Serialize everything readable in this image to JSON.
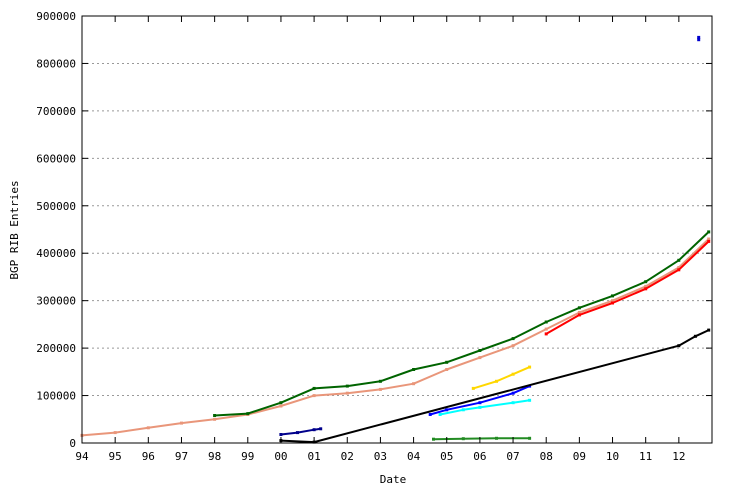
{
  "chart_data": {
    "type": "scatter",
    "xlabel": "Date",
    "ylabel": "BGP RIB Entries",
    "x_ticks": [
      "94",
      "95",
      "96",
      "97",
      "98",
      "99",
      "00",
      "01",
      "02",
      "03",
      "04",
      "05",
      "06",
      "07",
      "08",
      "09",
      "10",
      "11",
      "12"
    ],
    "y_ticks": [
      "0",
      "100000",
      "200000",
      "300000",
      "400000",
      "500000",
      "600000",
      "700000",
      "800000",
      "900000"
    ],
    "xlim": [
      1994.0,
      2013.0
    ],
    "ylim": [
      0,
      900000
    ],
    "grid": "horizontal dotted",
    "legend": "none",
    "series": [
      {
        "color": "#e9967a",
        "points": [
          [
            1994.0,
            16000
          ],
          [
            1995.0,
            22000
          ],
          [
            1996.0,
            32000
          ],
          [
            1997.0,
            42000
          ],
          [
            1998.0,
            50000
          ],
          [
            1999.0,
            60000
          ],
          [
            2000.0,
            78000
          ],
          [
            2001.0,
            100000
          ],
          [
            2002.0,
            105000
          ],
          [
            2003.0,
            113000
          ],
          [
            2004.0,
            125000
          ],
          [
            2005.0,
            155000
          ],
          [
            2006.0,
            180000
          ],
          [
            2007.0,
            205000
          ],
          [
            2008.0,
            240000
          ],
          [
            2009.0,
            275000
          ],
          [
            2010.0,
            300000
          ],
          [
            2011.0,
            330000
          ],
          [
            2012.0,
            370000
          ],
          [
            2012.9,
            430000
          ]
        ]
      },
      {
        "color": "#006400",
        "points": [
          [
            1998.0,
            58000
          ],
          [
            1999.0,
            62000
          ],
          [
            2000.0,
            85000
          ],
          [
            2001.0,
            115000
          ],
          [
            2002.0,
            120000
          ],
          [
            2003.0,
            130000
          ],
          [
            2004.0,
            155000
          ],
          [
            2005.0,
            170000
          ],
          [
            2006.0,
            195000
          ],
          [
            2007.0,
            220000
          ],
          [
            2008.0,
            255000
          ],
          [
            2009.0,
            285000
          ],
          [
            2010.0,
            310000
          ],
          [
            2011.0,
            340000
          ],
          [
            2012.0,
            385000
          ],
          [
            2012.9,
            445000
          ]
        ]
      },
      {
        "color": "#00008b",
        "points": [
          [
            2000.0,
            18000
          ],
          [
            2000.5,
            22000
          ],
          [
            2001.0,
            28000
          ],
          [
            2001.2,
            30000
          ]
        ]
      },
      {
        "color": "#0000ff",
        "points": [
          [
            2004.5,
            60000
          ],
          [
            2005.0,
            70000
          ],
          [
            2006.0,
            85000
          ],
          [
            2007.0,
            105000
          ],
          [
            2007.5,
            120000
          ]
        ]
      },
      {
        "color": "#ffd700",
        "points": [
          [
            2005.8,
            115000
          ],
          [
            2006.5,
            130000
          ],
          [
            2007.0,
            145000
          ],
          [
            2007.5,
            160000
          ]
        ]
      },
      {
        "color": "#00ffff",
        "points": [
          [
            2004.8,
            60000
          ],
          [
            2005.5,
            70000
          ],
          [
            2006.0,
            75000
          ],
          [
            2007.0,
            85000
          ],
          [
            2007.5,
            90000
          ]
        ]
      },
      {
        "color": "#228b22",
        "points": [
          [
            2004.6,
            8000
          ],
          [
            2005.5,
            9000
          ],
          [
            2006.5,
            10000
          ],
          [
            2007.5,
            10000
          ]
        ]
      },
      {
        "color": "#000000",
        "points": [
          [
            2000.0,
            5000
          ],
          [
            2001.0,
            2000
          ],
          [
            2012.0,
            205000
          ],
          [
            2012.5,
            225000
          ],
          [
            2012.9,
            238000
          ]
        ]
      },
      {
        "color": "#ff0000",
        "points": [
          [
            2008.0,
            230000
          ],
          [
            2009.0,
            270000
          ],
          [
            2010.0,
            295000
          ],
          [
            2011.0,
            325000
          ],
          [
            2012.0,
            365000
          ],
          [
            2012.9,
            425000
          ]
        ]
      },
      {
        "color": "#0000cd",
        "points": [
          [
            2012.6,
            850000
          ],
          [
            2012.6,
            855000
          ]
        ]
      }
    ]
  }
}
